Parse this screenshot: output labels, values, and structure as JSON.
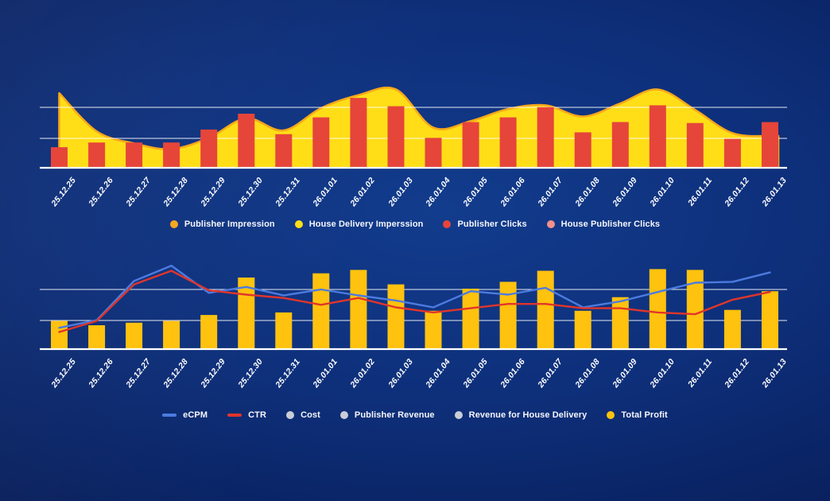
{
  "colors": {
    "background_center": "#123C8D",
    "background_mid": "#0E2F7A",
    "background_edge": "#081D55",
    "gridline": "#FFFFFF",
    "baseline": "#FFFFFF",
    "axis_label_text": "#FFFFFF",
    "legend_text": "#F5F7FC"
  },
  "chart_data": [
    {
      "id": "delivery-chart",
      "type": "area+bar combo",
      "title": "",
      "xlabel": "",
      "ylabel": "",
      "ylim": [
        0,
        100
      ],
      "values_unit": "percent of plot height (no y-axis tick labels shown in image)",
      "grid": "2 horizontal white gridlines above white baseline, no vertical grid",
      "legend_position": "bottom-center",
      "categories": [
        "25.12.25",
        "25.12.26",
        "25.12.27",
        "25.12.28",
        "25.12.29",
        "25.12.30",
        "25.12.31",
        "26.01.01",
        "26.01.02",
        "26.01.03",
        "26.01.04",
        "26.01.05",
        "26.01.06",
        "26.01.07",
        "26.01.08",
        "26.01.09",
        "26.01.10",
        "26.01.11",
        "26.01.12",
        "26.01.13"
      ],
      "series": [
        {
          "name": "House Delivery Imperssion",
          "type": "area",
          "color": "#FFDE17",
          "stroke": "#F7A81B",
          "values": [
            81,
            40,
            27,
            21,
            33,
            54,
            41,
            65,
            79,
            85,
            44,
            51,
            64,
            68,
            56,
            70,
            85,
            63,
            38,
            35
          ]
        },
        {
          "name": "Publisher Clicks",
          "type": "bar",
          "color": "#E6453A",
          "values": [
            23,
            28,
            28,
            28,
            42,
            59,
            37,
            55,
            76,
            67,
            33,
            50,
            55,
            66,
            39,
            50,
            68,
            49,
            32,
            50
          ]
        }
      ],
      "legend": [
        {
          "label": "Publisher Impression",
          "marker": "dot",
          "color": "#F5A623"
        },
        {
          "label": "House Delivery Imperssion",
          "marker": "dot",
          "color": "#FFDE17"
        },
        {
          "label": "Publisher Clicks",
          "marker": "dot",
          "color": "#E6453A"
        },
        {
          "label": "House Publisher Clicks",
          "marker": "dot",
          "color": "#F2918A"
        }
      ]
    },
    {
      "id": "revenue-chart",
      "type": "bar+line combo",
      "title": "",
      "xlabel": "",
      "ylabel": "",
      "ylim": [
        0,
        100
      ],
      "values_unit": "percent of plot height (no y-axis tick labels shown in image)",
      "grid": "2 horizontal white gridlines above white baseline, no vertical grid",
      "legend_position": "bottom-center",
      "categories": [
        "25.12.25",
        "25.12.26",
        "25.12.27",
        "25.12.28",
        "25.12.29",
        "25.12.30",
        "25.12.31",
        "26.01.01",
        "26.01.02",
        "26.01.03",
        "26.01.04",
        "26.01.05",
        "26.01.06",
        "26.01.07",
        "26.01.08",
        "26.01.09",
        "26.01.10",
        "26.01.11",
        "26.01.12",
        "26.01.13"
      ],
      "series": [
        {
          "name": "Total Profit",
          "type": "bar",
          "color": "#FFC20E",
          "values": [
            34,
            29,
            32,
            34,
            41,
            85,
            44,
            90,
            94,
            77,
            46,
            72,
            80,
            93,
            46,
            62,
            95,
            94,
            47,
            69
          ]
        },
        {
          "name": "eCPM",
          "type": "line",
          "color": "#4C7BE0",
          "values": [
            26,
            35,
            81,
            99,
            67,
            74,
            64,
            71,
            64,
            58,
            50,
            69,
            65,
            73,
            50,
            57,
            68,
            79,
            80,
            91
          ]
        },
        {
          "name": "CTR",
          "type": "line",
          "color": "#E0352B",
          "values": [
            21,
            34,
            77,
            93,
            70,
            65,
            61,
            53,
            61,
            50,
            44,
            49,
            54,
            54,
            49,
            49,
            44,
            42,
            59,
            68
          ]
        }
      ],
      "legend": [
        {
          "label": "eCPM",
          "marker": "dash",
          "color": "#4C7BE0"
        },
        {
          "label": "CTR",
          "marker": "dash",
          "color": "#E0352B"
        },
        {
          "label": "Cost",
          "marker": "dot",
          "color": "#C9CED6"
        },
        {
          "label": "Publisher Revenue",
          "marker": "dot",
          "color": "#C9CED6"
        },
        {
          "label": "Revenue for House Delivery",
          "marker": "dot",
          "color": "#C9CED6"
        },
        {
          "label": "Total Profit",
          "marker": "dot",
          "color": "#FFC20E",
          "bold": true
        }
      ]
    }
  ]
}
